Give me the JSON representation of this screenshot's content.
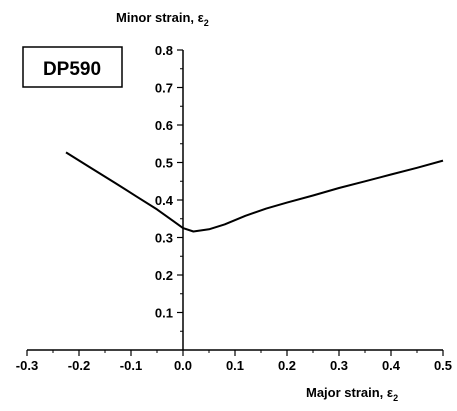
{
  "chart_data": {
    "type": "line",
    "title": "",
    "material_label": "DP590",
    "ylabel": {
      "text": "Minor strain, ε",
      "subscript": "2"
    },
    "xlabel": {
      "text": "Major strain, ε",
      "subscript": "2"
    },
    "xlim": [
      -0.3,
      0.5
    ],
    "ylim": [
      0.0,
      0.8
    ],
    "xticks": [
      "-0.3",
      "-0.2",
      "-0.1",
      "0.0",
      "0.1",
      "0.2",
      "0.3",
      "0.4",
      "0.5"
    ],
    "xtick_values": [
      -0.3,
      -0.2,
      -0.1,
      0.0,
      0.1,
      0.2,
      0.3,
      0.4,
      0.5
    ],
    "yticks": [
      "0.1",
      "0.2",
      "0.3",
      "0.4",
      "0.5",
      "0.6",
      "0.7",
      "0.8"
    ],
    "ytick_values": [
      0.1,
      0.2,
      0.3,
      0.4,
      0.5,
      0.6,
      0.7,
      0.8
    ],
    "grid": false,
    "series": [
      {
        "x": [
          -0.225,
          -0.18,
          -0.13,
          -0.09,
          -0.05,
          -0.02,
          0.0,
          0.02,
          0.05,
          0.08,
          0.12,
          0.16,
          0.2,
          0.25,
          0.3,
          0.35,
          0.4,
          0.45,
          0.5
        ],
        "y": [
          0.527,
          0.488,
          0.445,
          0.41,
          0.375,
          0.345,
          0.325,
          0.316,
          0.322,
          0.335,
          0.358,
          0.377,
          0.393,
          0.412,
          0.432,
          0.45,
          0.468,
          0.486,
          0.505
        ]
      }
    ]
  }
}
